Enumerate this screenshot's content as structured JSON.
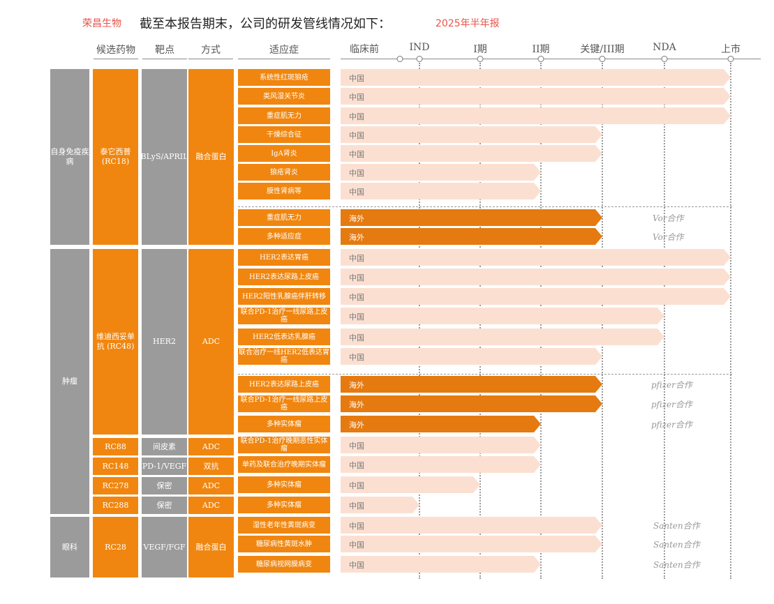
{
  "header": {
    "company": "荣昌生物",
    "headline": "截至本报告期末，公司的研发管线情况如下：",
    "report": "2025年半年报"
  },
  "columns": {
    "candidate": "候选药物",
    "target": "靶点",
    "method": "方式",
    "indication": "适应症"
  },
  "stages": [
    "临床前",
    "IND",
    "I期",
    "II期",
    "关键/III期",
    "NDA",
    "上市"
  ],
  "areas": {
    "autoimmune": "自身免疫疾病",
    "tumor": "肿瘤",
    "eye": "眼科"
  },
  "drugs": {
    "rc18": {
      "name": "泰它西普(RC18)",
      "target": "BLyS/APRIL",
      "method": "融合蛋白"
    },
    "rc48": {
      "name": "维迪西妥单抗 (RC48)",
      "target": "HER2",
      "method": "ADC"
    },
    "rc88": {
      "name": "RC88",
      "target": "间皮素",
      "method": "ADC"
    },
    "rc148": {
      "name": "RC148",
      "target": "PD-1/VEGF",
      "method": "双抗"
    },
    "rc278": {
      "name": "RC278",
      "target": "保密",
      "method": "ADC"
    },
    "rc288": {
      "name": "RC288",
      "target": "保密",
      "method": "ADC"
    },
    "rc28": {
      "name": "RC28",
      "target": "VEGF/FGF",
      "method": "融合蛋白"
    }
  },
  "rows": [
    {
      "indication": "系统性红斑狼疮",
      "region": "中国",
      "stage": "上市",
      "partner": ""
    },
    {
      "indication": "类风湿关节炎",
      "region": "中国",
      "stage": "上市",
      "partner": ""
    },
    {
      "indication": "重症肌无力",
      "region": "中国",
      "stage": "上市",
      "partner": ""
    },
    {
      "indication": "干燥综合征",
      "region": "中国",
      "stage": "关键/III期",
      "partner": ""
    },
    {
      "indication": "IgA肾炎",
      "region": "中国",
      "stage": "关键/III期",
      "partner": ""
    },
    {
      "indication": "狼疮肾炎",
      "region": "中国",
      "stage": "II期",
      "partner": ""
    },
    {
      "indication": "膜性肾病等",
      "region": "中国",
      "stage": "II期",
      "partner": ""
    },
    {
      "indication": "重症肌无力",
      "region": "海外",
      "stage": "关键/III期",
      "partner": "Vor合作"
    },
    {
      "indication": "多种适应症",
      "region": "海外",
      "stage": "关键/III期",
      "partner": "Vor合作"
    },
    {
      "indication": "HER2表达胃癌",
      "region": "中国",
      "stage": "上市",
      "partner": ""
    },
    {
      "indication": "HER2表达尿路上皮癌",
      "region": "中国",
      "stage": "上市",
      "partner": ""
    },
    {
      "indication": "HER2阳性乳腺癌伴肝转移",
      "region": "中国",
      "stage": "上市",
      "partner": ""
    },
    {
      "indication": "联合PD-1治疗一线尿路上皮癌",
      "region": "中国",
      "stage": "NDA",
      "partner": ""
    },
    {
      "indication": "HER2低表达乳腺癌",
      "region": "中国",
      "stage": "NDA",
      "partner": ""
    },
    {
      "indication": "联合治疗一线HER2低表达胃癌",
      "region": "中国",
      "stage": "关键/III期",
      "partner": ""
    },
    {
      "indication": "HER2表达尿路上皮癌",
      "region": "海外",
      "stage": "关键/III期",
      "partner": "pfizer合作"
    },
    {
      "indication": "联合PD-1治疗一线尿路上皮癌",
      "region": "海外",
      "stage": "关键/III期",
      "partner": "pfizer合作"
    },
    {
      "indication": "多种实体瘤",
      "region": "海外",
      "stage": "II期",
      "partner": "pfizer合作"
    },
    {
      "indication": "联合PD-1治疗晚期恶性实体瘤",
      "region": "中国",
      "stage": "II期",
      "partner": ""
    },
    {
      "indication": "单药及联合治疗晚期实体瘤",
      "region": "中国",
      "stage": "II期",
      "partner": ""
    },
    {
      "indication": "多种实体瘤",
      "region": "中国",
      "stage": "I期",
      "partner": ""
    },
    {
      "indication": "多种实体瘤",
      "region": "中国",
      "stage": "IND",
      "partner": ""
    },
    {
      "indication": "湿性老年性黄斑病变",
      "region": "中国",
      "stage": "关键/III期",
      "partner": "Santen合作"
    },
    {
      "indication": "糖尿病性黄斑水肿",
      "region": "中国",
      "stage": "关键/III期",
      "partner": "Santen合作"
    },
    {
      "indication": "糖尿病视网膜病变",
      "region": "中国",
      "stage": "II期",
      "partner": "Santen合作"
    }
  ]
}
